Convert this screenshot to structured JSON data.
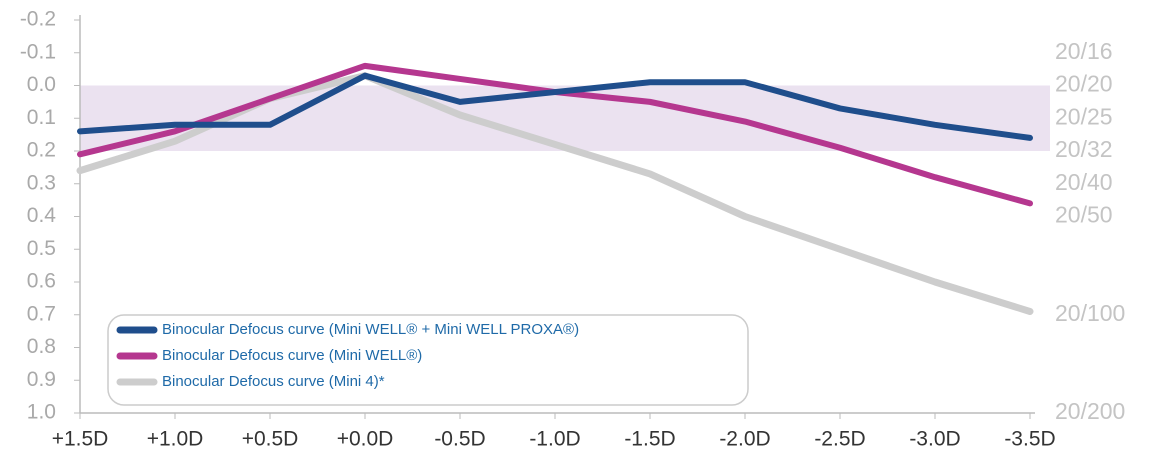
{
  "chart_data": {
    "type": "line",
    "categories": [
      "+1.5D",
      "+1.0D",
      "+0.5D",
      "+0.0D",
      "-0.5D",
      "-1.0D",
      "-1.5D",
      "-2.0D",
      "-2.5D",
      "-3.0D",
      "-3.5D"
    ],
    "series": [
      {
        "name": "Binocular Defocus curve (Mini WELL® + Mini WELL PROXA®)",
        "color": "#1f4e8c",
        "values": [
          0.14,
          0.12,
          0.12,
          -0.03,
          0.05,
          0.02,
          -0.01,
          -0.01,
          0.07,
          0.12,
          0.16
        ]
      },
      {
        "name": "Binocular Defocus curve (Mini WELL®)",
        "color": "#b5378f",
        "values": [
          0.21,
          0.14,
          0.04,
          -0.06,
          -0.02,
          0.02,
          0.05,
          0.11,
          0.19,
          0.28,
          0.36
        ]
      },
      {
        "name": "Binocular Defocus curve (Mini 4)*",
        "color": "#cdcdcd",
        "values": [
          0.26,
          0.17,
          0.04,
          -0.03,
          0.09,
          0.18,
          0.27,
          0.4,
          0.5,
          0.6,
          0.69
        ]
      }
    ],
    "ylim": [
      -0.2,
      1
    ],
    "yticks": [
      -0.2,
      -0.1,
      {
        "value": 0,
        "label": "0.0"
      },
      0.1,
      0.2,
      0.3,
      0.4,
      0.5,
      0.6,
      0.7,
      0.8,
      0.9,
      {
        "value": 1,
        "label": "1.0"
      }
    ],
    "y2lim": [
      -0.2,
      1
    ],
    "y2ticks": [
      {
        "value": -0.1,
        "label": "20/16"
      },
      {
        "value": 0,
        "label": "20/20"
      },
      {
        "value": 0.1,
        "label": "20/25"
      },
      {
        "value": 0.2,
        "label": "20/32"
      },
      {
        "value": 0.3,
        "label": "20/40"
      },
      {
        "value": 0.4,
        "label": "20/50"
      },
      {
        "value": 0.7,
        "label": "20/100"
      },
      {
        "value": 1,
        "label": "20/200"
      }
    ],
    "band": [
      0,
      0.2
    ],
    "band_color": "#ebe2f0",
    "legend": "lower left"
  }
}
